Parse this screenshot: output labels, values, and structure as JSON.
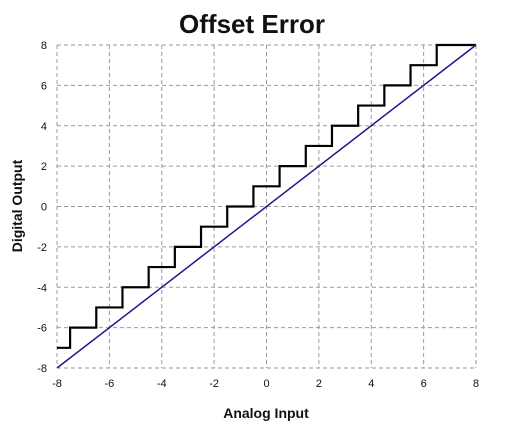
{
  "chart_data": {
    "type": "line",
    "title": "Offset Error",
    "xlabel": "Analog Input",
    "ylabel": "Digital Output",
    "xlim": [
      -8,
      8
    ],
    "ylim": [
      -8,
      8
    ],
    "xticks": [
      -8,
      -6,
      -4,
      -2,
      0,
      2,
      4,
      6,
      8
    ],
    "yticks": [
      -8,
      -6,
      -4,
      -2,
      0,
      2,
      4,
      6,
      8
    ],
    "grid": true,
    "legend": "none",
    "series": [
      {
        "kind": "step",
        "color": "#000000",
        "x": [
          -8,
          -7.5,
          -7.5,
          -6.5,
          -6.5,
          -5.5,
          -5.5,
          -4.5,
          -4.5,
          -3.5,
          -3.5,
          -2.5,
          -2.5,
          -1.5,
          -1.5,
          -0.5,
          -0.5,
          0.5,
          0.5,
          1.5,
          1.5,
          2.5,
          2.5,
          3.5,
          3.5,
          4.5,
          4.5,
          5.5,
          5.5,
          6.5,
          6.5,
          8
        ],
        "y": [
          -7,
          -7,
          -6,
          -6,
          -5,
          -5,
          -4,
          -4,
          -3,
          -3,
          -2,
          -2,
          -1,
          -1,
          0,
          0,
          1,
          1,
          2,
          2,
          3,
          3,
          4,
          4,
          5,
          5,
          6,
          6,
          7,
          7,
          8,
          8
        ]
      },
      {
        "kind": "line",
        "color": "#1a1a8c",
        "x": [
          -8,
          8
        ],
        "y": [
          -8,
          8
        ]
      }
    ]
  }
}
